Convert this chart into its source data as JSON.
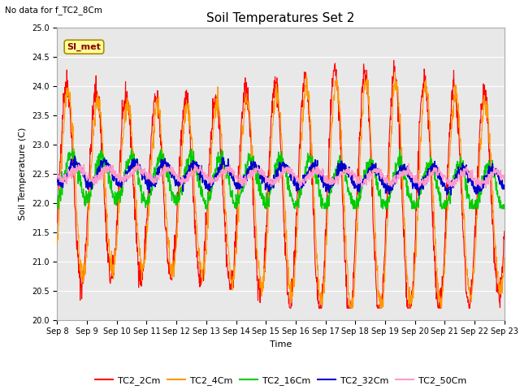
{
  "title": "Soil Temperatures Set 2",
  "top_left_text": "No data for f_TC2_8Cm",
  "ylabel": "Soil Temperature (C)",
  "xlabel": "Time",
  "ylim": [
    20.0,
    25.0
  ],
  "yticks": [
    20.0,
    20.5,
    21.0,
    21.5,
    22.0,
    22.5,
    23.0,
    23.5,
    24.0,
    24.5,
    25.0
  ],
  "xtick_labels": [
    "Sep 8",
    "Sep 9",
    "Sep 10",
    "Sep 11",
    "Sep 12",
    "Sep 13",
    "Sep 14",
    "Sep 15",
    "Sep 16",
    "Sep 17",
    "Sep 18",
    "Sep 19",
    "Sep 20",
    "Sep 21",
    "Sep 22",
    "Sep 23"
  ],
  "legend_labels": [
    "TC2_2Cm",
    "TC2_4Cm",
    "TC2_16Cm",
    "TC2_32Cm",
    "TC2_50Cm"
  ],
  "colors": [
    "#FF0000",
    "#FF9900",
    "#00CC00",
    "#0000CC",
    "#FF99CC"
  ],
  "fig_bg_color": "#FFFFFF",
  "plot_bg_color": "#E8E8E8",
  "grid_color": "#FFFFFF",
  "watermark_text": "SI_met",
  "watermark_bg": "#FFFF99",
  "watermark_border": "#AA8800",
  "n_days": 15,
  "points_per_day": 96,
  "title_fontsize": 11,
  "axis_fontsize": 8,
  "tick_fontsize": 7,
  "legend_fontsize": 8
}
